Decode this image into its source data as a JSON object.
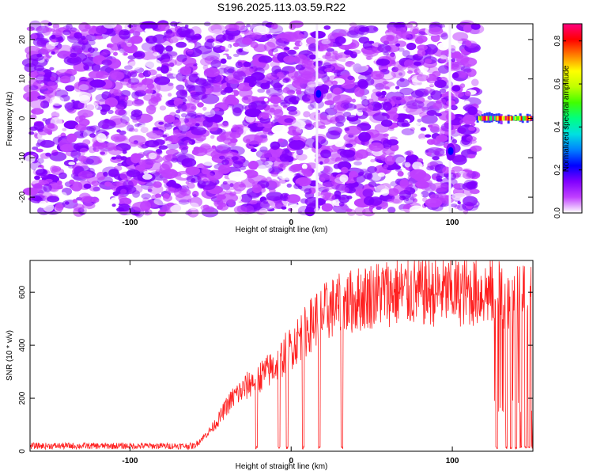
{
  "title": "S196.2025.113.03.59.R22",
  "chart_data": [
    {
      "type": "heatmap",
      "xlabel": "Height of straight line (km)",
      "ylabel": "Frequency (Hz)",
      "xlim": [
        -162,
        150
      ],
      "ylim": [
        -24,
        24
      ],
      "xticks": [
        -100,
        0,
        100
      ],
      "yticks": [
        -20,
        -10,
        0,
        10,
        20
      ],
      "colorbar": {
        "label": "Normalized spectral amplitude",
        "range": [
          0,
          0.88
        ],
        "ticks": [
          "0.0",
          "0.2",
          "0.4",
          "0.6",
          "0.8"
        ],
        "colors": [
          "#ffffff",
          "#c040ff",
          "#8000ff",
          "#0000ff",
          "#0080ff",
          "#00e0e0",
          "#00ff80",
          "#40ff00",
          "#c0ff00",
          "#ffff00",
          "#ff8000",
          "#ff0000",
          "#ff0080"
        ]
      },
      "features": [
        {
          "kind": "noise-field",
          "x_range": [
            -162,
            115
          ],
          "y_range": [
            -24,
            24
          ],
          "amplitude": 0.1
        },
        {
          "kind": "blob",
          "x": 17,
          "y": 6,
          "amplitude": 0.22
        },
        {
          "kind": "blob",
          "x": 99,
          "y": -8.5,
          "amplitude": 0.22
        },
        {
          "kind": "vertical-streak",
          "x": 16,
          "amplitude": 0.02
        },
        {
          "kind": "vertical-streak",
          "x": 98.5,
          "amplitude": 0.02
        },
        {
          "kind": "band",
          "x_range": [
            115,
            150
          ],
          "y": 0,
          "amplitude": 0.85
        }
      ]
    },
    {
      "type": "line",
      "xlabel": "Height of straight line (km)",
      "ylabel": "SNR (10 * v/v)",
      "xlim": [
        -162,
        150
      ],
      "ylim": [
        0,
        720
      ],
      "xticks": [
        -100,
        0,
        100
      ],
      "yticks": [
        0,
        200,
        400,
        600
      ],
      "series": [
        {
          "color": "#ff2020",
          "x": [
            -162,
            -100,
            -60,
            -55,
            -50,
            -45,
            -40,
            -35,
            -30,
            -25,
            -20,
            -15,
            -10,
            -5,
            0,
            5,
            10,
            15,
            20,
            25,
            30,
            35,
            40,
            45,
            50,
            60,
            70,
            80,
            90,
            100,
            110,
            120,
            125,
            130,
            135,
            140,
            145,
            150
          ],
          "values": [
            20,
            20,
            20,
            50,
            80,
            120,
            170,
            210,
            230,
            260,
            280,
            300,
            320,
            360,
            390,
            430,
            460,
            500,
            520,
            540,
            550,
            560,
            570,
            580,
            590,
            600,
            600,
            600,
            600,
            600,
            600,
            600,
            600,
            590,
            590,
            580,
            580,
            580
          ]
        }
      ],
      "dropouts": [
        [
          -22,
          -21
        ],
        [
          -8,
          -7
        ],
        [
          -3,
          -2
        ],
        [
          7,
          8
        ],
        [
          17,
          18
        ],
        [
          31,
          32
        ],
        [
          127,
          128
        ],
        [
          133,
          134
        ],
        [
          136,
          137
        ],
        [
          139,
          140
        ],
        [
          142,
          143
        ],
        [
          145,
          146
        ],
        [
          147,
          148
        ],
        [
          149,
          150
        ]
      ]
    }
  ]
}
